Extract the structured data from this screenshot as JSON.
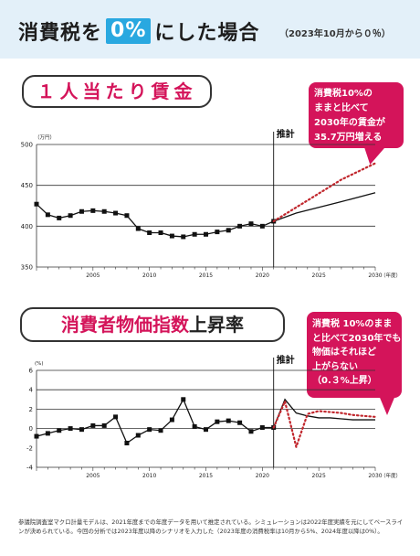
{
  "header": {
    "title_part1": "消費税を",
    "title_highlight": "0%",
    "title_part2": "にした場合",
    "subtitle": "（2023年10月から０％）"
  },
  "section1": {
    "title": "１人当たり賃金",
    "callout_lines": [
      "消費税10%の",
      "ままと比べて",
      "2030年の賃金が",
      "35.7万円増える"
    ]
  },
  "section2": {
    "title_part1": "消費者物価指数",
    "title_part2": "上昇率",
    "callout_lines": [
      "消費税 10%のまま",
      "と比べて2030年でも",
      "物価はそれほど",
      "上がらない",
      "（0.３%上昇）"
    ]
  },
  "footnote": "参議院調査室マクロ計量モデルは、2021年度までの年度データを用いて推定されている。シミュレーションは2022年度実績を元にしてベースラインが決められている。今回の分析では2023年度以降のシナリオを入力した（2023年度の消費税率は10月から5%、2024年度以降は0%）。",
  "chart_data": [
    {
      "type": "line",
      "unit_label": "（万円）",
      "forecast_label": "推計",
      "xlabel_suffix": "（年度）",
      "xlim": [
        2000,
        2030
      ],
      "ylim": [
        350,
        500
      ],
      "yticks": [
        350,
        400,
        450,
        500
      ],
      "xticks": [
        2005,
        2010,
        2015,
        2020,
        2025,
        2030
      ],
      "gridlines": [
        400,
        450,
        500
      ],
      "forecast_start": 2021,
      "colors": {
        "baseline": "#111111",
        "scenario": "#c1272d"
      },
      "series": [
        {
          "style": "solid-markers",
          "x": [
            2000,
            2001,
            2002,
            2003,
            2004,
            2005,
            2006,
            2007,
            2008,
            2009,
            2010,
            2011,
            2012,
            2013,
            2014,
            2015,
            2016,
            2017,
            2018,
            2019,
            2020,
            2021
          ],
          "y": [
            427,
            414,
            410,
            413,
            418,
            419,
            418,
            416,
            413,
            397,
            392,
            392,
            388,
            387,
            390,
            390,
            393,
            395,
            400,
            403,
            400,
            406
          ]
        },
        {
          "style": "solid",
          "x": [
            2021,
            2023,
            2025,
            2027,
            2030
          ],
          "y": [
            406,
            416,
            423,
            430,
            441
          ]
        },
        {
          "style": "dotted",
          "x": [
            2021,
            2023,
            2025,
            2027,
            2030
          ],
          "y": [
            406,
            423,
            440,
            457,
            477
          ]
        }
      ]
    },
    {
      "type": "line",
      "unit_label": "(%)",
      "forecast_label": "推計",
      "xlabel_suffix": "（年度）",
      "xlim": [
        2000,
        2030
      ],
      "ylim": [
        -4,
        6
      ],
      "yticks": [
        -4,
        -2,
        0,
        2,
        4,
        6
      ],
      "xticks": [
        2005,
        2010,
        2015,
        2020,
        2025,
        2030
      ],
      "gridlines": [
        0,
        2,
        4,
        6
      ],
      "forecast_start": 2021,
      "colors": {
        "baseline": "#111111",
        "scenario": "#c1272d"
      },
      "series": [
        {
          "style": "solid-markers",
          "x": [
            2000,
            2001,
            2002,
            2003,
            2004,
            2005,
            2006,
            2007,
            2008,
            2009,
            2010,
            2011,
            2012,
            2013,
            2014,
            2015,
            2016,
            2017,
            2018,
            2019,
            2020,
            2021
          ],
          "y": [
            -0.8,
            -0.5,
            -0.2,
            0,
            -0.1,
            0.3,
            0.3,
            1.2,
            -1.5,
            -0.7,
            -0.1,
            -0.2,
            0.9,
            3,
            0.2,
            -0.1,
            0.7,
            0.8,
            0.6,
            -0.3,
            0.1,
            0.1
          ]
        },
        {
          "style": "solid",
          "x": [
            2021,
            2022,
            2023,
            2024,
            2025,
            2026,
            2027,
            2028,
            2029,
            2030
          ],
          "y": [
            0.1,
            3.0,
            1.6,
            1.3,
            1.1,
            1.1,
            1.0,
            0.9,
            0.9,
            0.9
          ]
        },
        {
          "style": "dotted",
          "x": [
            2021,
            2022,
            2023,
            2024,
            2025,
            2026,
            2027,
            2028,
            2029,
            2030
          ],
          "y": [
            0.1,
            2.8,
            -1.9,
            1.5,
            1.8,
            1.7,
            1.6,
            1.4,
            1.3,
            1.2
          ]
        }
      ]
    }
  ]
}
